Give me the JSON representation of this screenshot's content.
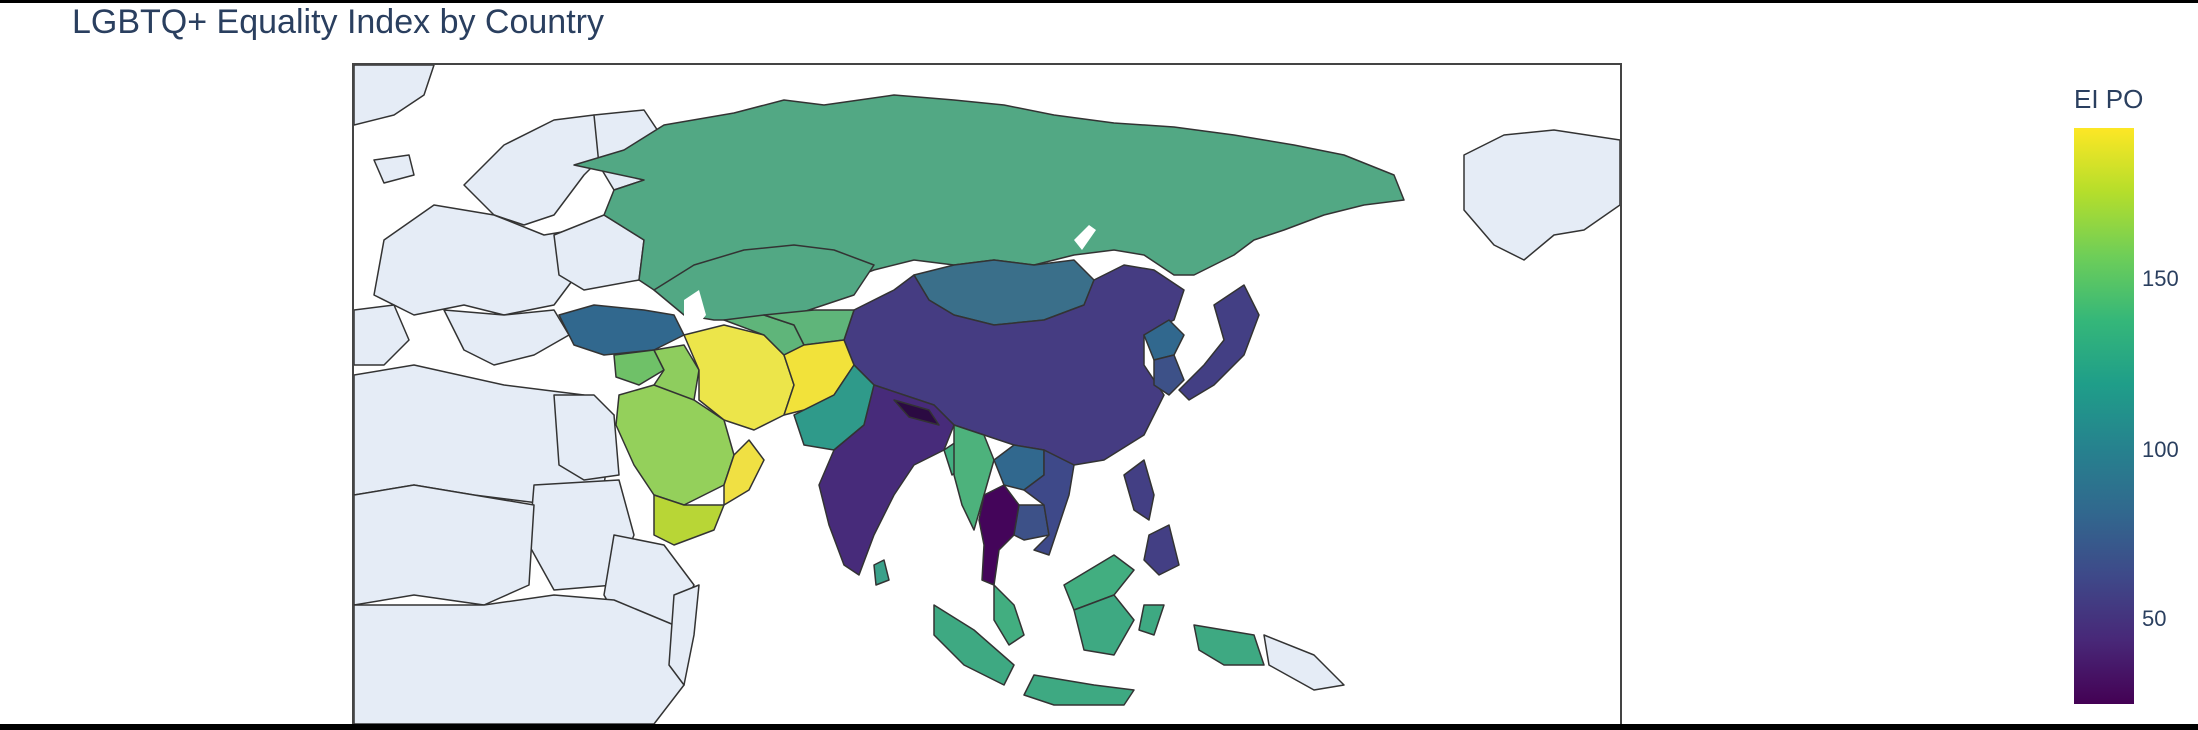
{
  "title": "LGBTQ+ Equality Index by Country",
  "colorbar": {
    "title": "EI PO",
    "ticks": [
      {
        "label": "150",
        "value": 150
      },
      {
        "label": "100",
        "value": 100
      },
      {
        "label": "50",
        "value": 50
      }
    ],
    "range": [
      27,
      197
    ],
    "colorscale": "Viridis"
  },
  "map": {
    "projection": "equirectangular",
    "background_land_color": "#e5ecf6",
    "border_color": "#333333",
    "highlighted_countries": [
      {
        "name": "Russia",
        "color": "#52a884"
      },
      {
        "name": "Kazakhstan",
        "color": "#52a884"
      },
      {
        "name": "Mongolia",
        "color": "#3a6f8a"
      },
      {
        "name": "China",
        "color": "#453c82"
      },
      {
        "name": "Japan",
        "color": "#433f84"
      },
      {
        "name": "South Korea",
        "color": "#3d5188"
      },
      {
        "name": "North Korea",
        "color": "#31688e"
      },
      {
        "name": "India",
        "color": "#472b7a"
      },
      {
        "name": "Nepal",
        "color": "#2b0a42"
      },
      {
        "name": "Thailand",
        "color": "#44055a"
      },
      {
        "name": "Myanmar",
        "color": "#4db27c"
      },
      {
        "name": "Vietnam",
        "color": "#3e4989"
      },
      {
        "name": "Cambodia",
        "color": "#3d5188"
      },
      {
        "name": "Laos",
        "color": "#31688e"
      },
      {
        "name": "Malaysia",
        "color": "#42ae80"
      },
      {
        "name": "Indonesia",
        "color": "#3ea982"
      },
      {
        "name": "Philippines",
        "color": "#433f84"
      },
      {
        "name": "Pakistan",
        "color": "#2f9a8a"
      },
      {
        "name": "Afghanistan",
        "color": "#f2e23a"
      },
      {
        "name": "Iran",
        "color": "#ece54a"
      },
      {
        "name": "Turkey",
        "color": "#31688e"
      },
      {
        "name": "Saudi Arabia",
        "color": "#94d05b"
      },
      {
        "name": "Yemen",
        "color": "#b8d636"
      },
      {
        "name": "Oman",
        "color": "#f0e043"
      },
      {
        "name": "Iraq",
        "color": "#8ecd5e"
      },
      {
        "name": "Syria",
        "color": "#6fc168"
      },
      {
        "name": "Uzbekistan",
        "color": "#5fb57a"
      },
      {
        "name": "Turkmenistan",
        "color": "#5fb57a"
      },
      {
        "name": "Bangladesh",
        "color": "#42ae80"
      },
      {
        "name": "Sri Lanka",
        "color": "#3aa18a"
      }
    ]
  }
}
